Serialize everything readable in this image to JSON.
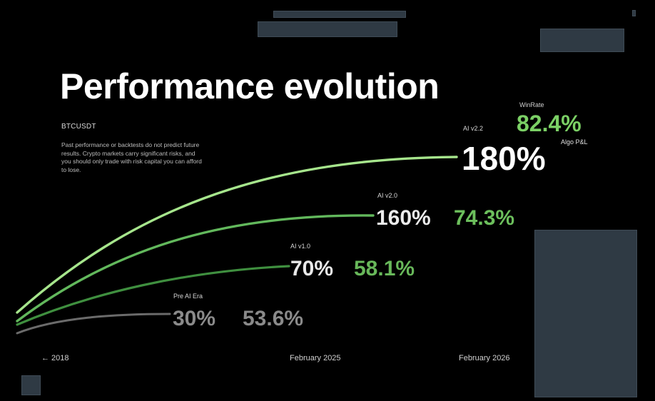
{
  "title": "Performance evolution",
  "symbol": "BTCUSDT",
  "disclaimer": "Past performance or backtests do not predict future results. Crypto markets carry significant risks, and you should only trade with risk capital you can afford to lose.",
  "chart_data": {
    "type": "line",
    "x_labels": [
      "← 2018",
      "February 2025",
      "February 2026"
    ],
    "series": [
      {
        "name": "Pre AI Era",
        "algo_pnl": "30%",
        "winrate": "53.6%",
        "algo_pnl_value": 30,
        "winrate_value": 53.6,
        "color": "#6b6b6b",
        "value_color": "#8a8a8a",
        "winrate_color": "#8a8a8a"
      },
      {
        "name": "AI v1.0",
        "algo_pnl": "70%",
        "winrate": "58.1%",
        "algo_pnl_value": 70,
        "winrate_value": 58.1,
        "color": "#3f8f3f",
        "value_color": "#e9e9e9",
        "winrate_color": "#68b85a"
      },
      {
        "name": "AI v2.0",
        "algo_pnl": "160%",
        "winrate": "74.3%",
        "algo_pnl_value": 160,
        "winrate_value": 74.3,
        "color": "#62b85c",
        "value_color": "#ececec",
        "winrate_color": "#6cbf5c"
      },
      {
        "name": "AI v2.2",
        "algo_pnl": "180%",
        "winrate": "82.4%",
        "algo_pnl_value": 180,
        "winrate_value": 82.4,
        "color": "#a6e58c",
        "value_color": "#ffffff",
        "winrate_color": "#7bd065"
      }
    ],
    "winrate_label": "WinRate",
    "algo_pnl_label": "Algo P&L"
  }
}
